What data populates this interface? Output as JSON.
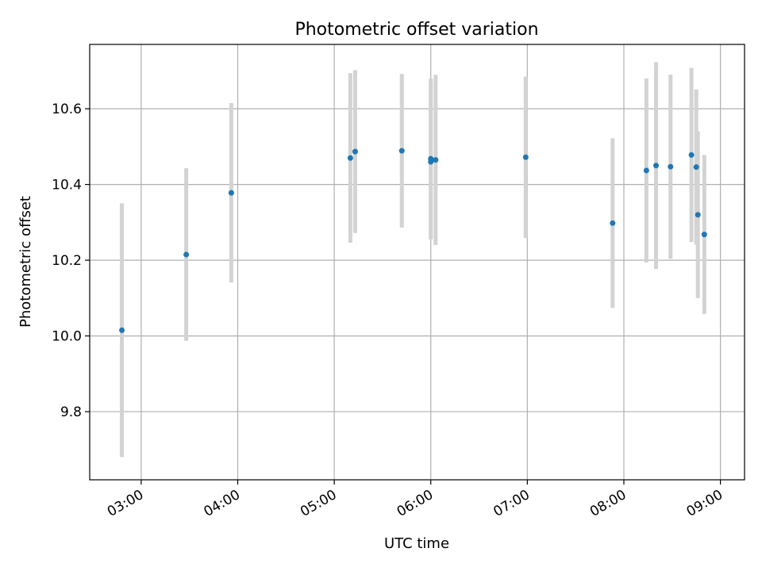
{
  "chart_data": {
    "type": "scatter",
    "title": "Photometric offset variation",
    "xlabel": "UTC time",
    "ylabel": "Photometric offset",
    "x_ticks": [
      "03:00",
      "04:00",
      "05:00",
      "06:00",
      "07:00",
      "08:00",
      "09:00"
    ],
    "y_ticks": [
      "9.8",
      "10.0",
      "10.2",
      "10.4",
      "10.6"
    ],
    "xlim": [
      "02:28",
      "09:15"
    ],
    "ylim": [
      9.62,
      10.77
    ],
    "grid": true,
    "colors": {
      "point": "#1f77b4",
      "errorbar": "#d3d3d3"
    },
    "series": [
      {
        "x": [
          "02:48",
          "03:28",
          "03:56",
          "05:10",
          "05:13",
          "05:42",
          "06:00",
          "06:00",
          "06:03",
          "06:59",
          "07:53",
          "08:14",
          "08:20",
          "08:29",
          "08:42",
          "08:45",
          "08:46",
          "08:50"
        ],
        "y": [
          10.015,
          10.215,
          10.378,
          10.47,
          10.487,
          10.489,
          10.468,
          10.46,
          10.465,
          10.472,
          10.298,
          10.437,
          10.45,
          10.447,
          10.478,
          10.446,
          10.32,
          10.268
        ],
        "err": [
          0.335,
          0.228,
          0.237,
          0.224,
          0.215,
          0.203,
          0.212,
          0.205,
          0.225,
          0.213,
          0.224,
          0.243,
          0.273,
          0.243,
          0.23,
          0.205,
          0.22,
          0.21
        ]
      }
    ]
  }
}
